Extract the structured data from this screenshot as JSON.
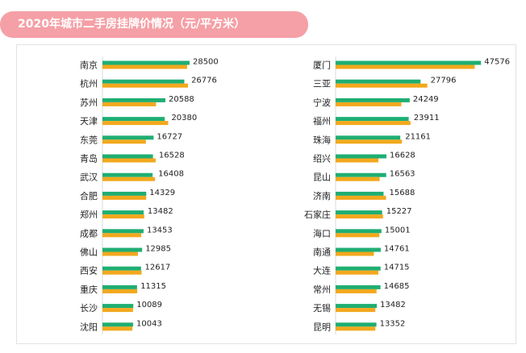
{
  "title": "2020年城市二手房挂牌价情况（元/平方米）",
  "colors": {
    "banner": "#f5a0a6",
    "green": "#1fae72",
    "orange": "#f2a81d"
  },
  "chart_data": [
    {
      "type": "bar",
      "orientation": "horizontal",
      "categories": [
        "南京",
        "杭州",
        "苏州",
        "天津",
        "东莞",
        "青岛",
        "武汉",
        "合肥",
        "郑州",
        "成都",
        "佛山",
        "西安",
        "重庆",
        "长沙",
        "沈阳"
      ],
      "series": [
        {
          "color": "#1fae72",
          "values": [
            28500,
            26776,
            20588,
            20380,
            16727,
            16528,
            16408,
            14329,
            13482,
            13453,
            12985,
            12617,
            11315,
            10089,
            10043
          ]
        },
        {
          "color": "#f2a81d",
          "values": [
            27700,
            28000,
            17500,
            21500,
            14200,
            17400,
            17200,
            14300,
            13700,
            12700,
            11600,
            12800,
            11400,
            10000,
            9800
          ]
        }
      ],
      "xlim": [
        0,
        52000
      ],
      "grid": false
    },
    {
      "type": "bar",
      "orientation": "horizontal",
      "categories": [
        "厦门",
        "三亚",
        "宁波",
        "福州",
        "珠海",
        "绍兴",
        "昆山",
        "济南",
        "石家庄",
        "海口",
        "南通",
        "大连",
        "常州",
        "无锡",
        "昆明"
      ],
      "series": [
        {
          "color": "#1fae72",
          "values": [
            47576,
            27796,
            24249,
            23911,
            21161,
            16628,
            16563,
            15688,
            15227,
            15001,
            14761,
            14715,
            14685,
            13482,
            13352
          ]
        },
        {
          "color": "#f2a81d",
          "values": [
            45500,
            30000,
            21500,
            24500,
            21700,
            14000,
            14400,
            16500,
            15500,
            14300,
            12500,
            14000,
            13400,
            13000,
            13000
          ]
        }
      ],
      "xlim": [
        0,
        52000
      ],
      "grid": false
    }
  ]
}
